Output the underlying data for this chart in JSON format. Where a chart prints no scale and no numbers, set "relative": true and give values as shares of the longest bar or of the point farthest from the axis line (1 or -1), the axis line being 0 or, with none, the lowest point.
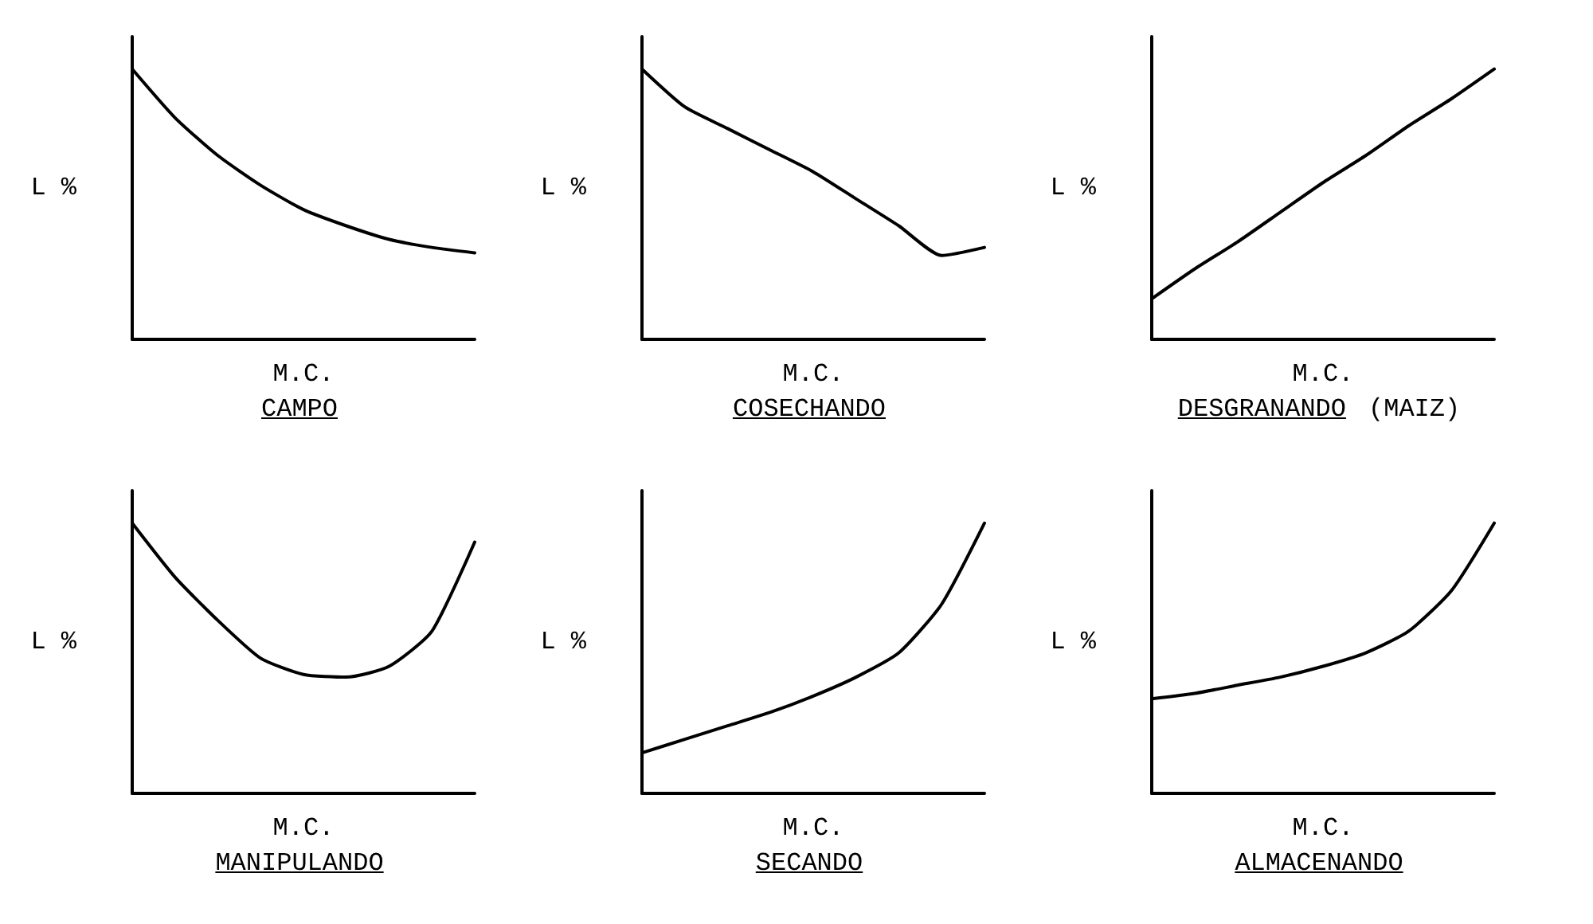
{
  "chart_data": [
    {
      "type": "line",
      "title": "CAMPO",
      "xlabel": "M.C.",
      "ylabel": "L %",
      "relative": true,
      "categories": [
        null,
        null,
        null,
        null,
        null,
        null,
        null,
        null,
        null
      ],
      "values": [
        1,
        0.82,
        0.68,
        0.57,
        0.48,
        0.42,
        0.37,
        0.34,
        0.32
      ],
      "color": "#000000",
      "marker": "none",
      "grid": false
    },
    {
      "type": "line",
      "title": "COSECHANDO",
      "xlabel": "M.C.",
      "ylabel": "L %",
      "relative": true,
      "categories": [
        null,
        null,
        null,
        null,
        null,
        null,
        null,
        null,
        null
      ],
      "values": [
        1,
        0.86,
        0.78,
        0.7,
        0.62,
        0.52,
        0.42,
        0.31,
        0.34
      ],
      "color": "#000000",
      "marker": "none",
      "grid": false
    },
    {
      "type": "line",
      "title": "DESGRANANDO",
      "xlabel": "M.C.",
      "ylabel": "L %",
      "relative": true,
      "annotations": [
        "(MAIZ)"
      ],
      "categories": [
        null,
        null,
        null,
        null,
        null,
        null,
        null,
        null,
        null
      ],
      "values": [
        0.15,
        0.26,
        0.36,
        0.47,
        0.58,
        0.68,
        0.79,
        0.89,
        1
      ],
      "color": "#000000",
      "marker": "none",
      "grid": false
    },
    {
      "type": "line",
      "title": "MANIPULANDO",
      "xlabel": "M.C.",
      "ylabel": "L %",
      "relative": true,
      "categories": [
        null,
        null,
        null,
        null,
        null,
        null,
        null,
        null,
        null
      ],
      "values": [
        1,
        0.8,
        0.64,
        0.5,
        0.44,
        0.43,
        0.47,
        0.6,
        0.93
      ],
      "color": "#000000",
      "marker": "none",
      "grid": false
    },
    {
      "type": "line",
      "title": "SECANDO",
      "xlabel": "M.C.",
      "ylabel": "L %",
      "relative": true,
      "categories": [
        null,
        null,
        null,
        null,
        null,
        null,
        null,
        null,
        null
      ],
      "values": [
        0.15,
        0.2,
        0.25,
        0.3,
        0.36,
        0.43,
        0.52,
        0.7,
        1
      ],
      "color": "#000000",
      "marker": "none",
      "grid": false
    },
    {
      "type": "line",
      "title": "ALMACENANDO",
      "xlabel": "M.C.",
      "ylabel": "L %",
      "relative": true,
      "categories": [
        null,
        null,
        null,
        null,
        null,
        null,
        null,
        null,
        null
      ],
      "values": [
        0.35,
        0.37,
        0.4,
        0.43,
        0.47,
        0.52,
        0.6,
        0.75,
        1
      ],
      "color": "#000000",
      "marker": "none",
      "grid": false
    }
  ]
}
